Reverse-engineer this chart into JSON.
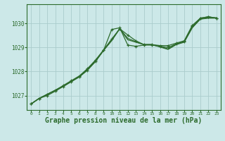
{
  "background_color": "#cce8e8",
  "grid_color": "#aacccc",
  "line_color": "#2d6b2d",
  "xlabel": "Graphe pression niveau de la mer (hPa)",
  "xlabel_fontsize": 7.0,
  "xlim": [
    -0.5,
    23.5
  ],
  "ylim": [
    1026.4,
    1030.8
  ],
  "yticks": [
    1027,
    1028,
    1029,
    1030
  ],
  "xticks": [
    0,
    1,
    2,
    3,
    4,
    5,
    6,
    7,
    8,
    9,
    10,
    11,
    12,
    13,
    14,
    15,
    16,
    17,
    18,
    19,
    20,
    21,
    22,
    23
  ],
  "series1": [
    1026.65,
    1026.88,
    1027.0,
    1027.18,
    1027.38,
    1027.58,
    1027.78,
    1028.05,
    1028.42,
    1028.88,
    1029.75,
    1029.82,
    1029.1,
    1029.05,
    1029.1,
    1029.1,
    1029.05,
    1029.0,
    1029.15,
    1029.25,
    1029.88,
    1030.22,
    1030.28,
    1030.22
  ],
  "series2": [
    1026.65,
    1026.88,
    1027.05,
    1027.22,
    1027.42,
    1027.62,
    1027.82,
    1028.12,
    1028.48,
    1028.9,
    1029.35,
    1029.78,
    1029.52,
    1029.28,
    1029.12,
    1029.12,
    1029.08,
    1029.08,
    1029.18,
    1029.28,
    1029.92,
    1030.22,
    1030.28,
    1030.22
  ],
  "series3": [
    1026.65,
    1026.88,
    1027.05,
    1027.22,
    1027.38,
    1027.58,
    1027.78,
    1028.08,
    1028.42,
    1028.88,
    1029.28,
    1029.78,
    1029.32,
    1029.22,
    1029.12,
    1029.12,
    1029.02,
    1028.92,
    1029.12,
    1029.22,
    1029.82,
    1030.18,
    1030.22,
    1030.22
  ],
  "series4": [
    1026.65,
    1026.88,
    1027.05,
    1027.22,
    1027.4,
    1027.6,
    1027.8,
    1028.1,
    1028.45,
    1028.88,
    1029.3,
    1029.78,
    1029.38,
    1029.24,
    1029.12,
    1029.12,
    1029.04,
    1028.94,
    1029.14,
    1029.24,
    1029.84,
    1030.19,
    1030.24,
    1030.24
  ]
}
